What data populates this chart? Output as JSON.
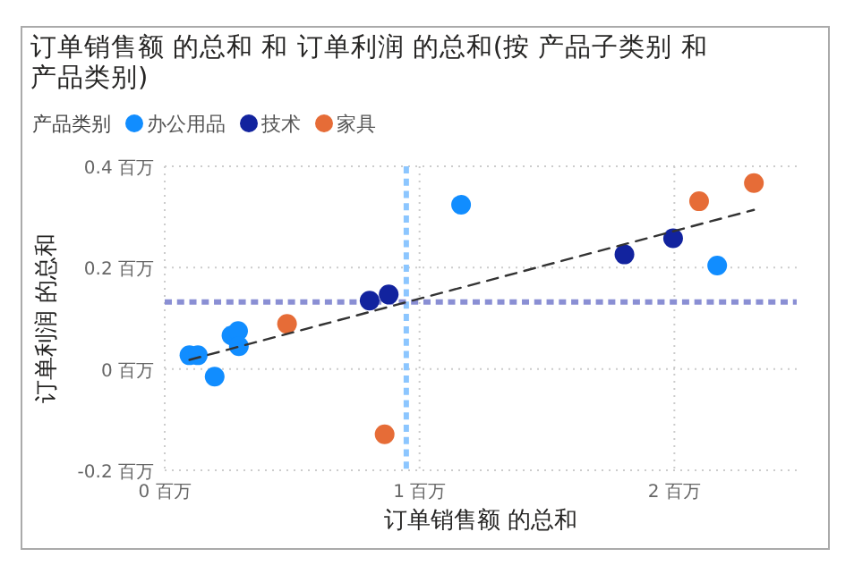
{
  "chart_data": {
    "type": "scatter",
    "title": "订单销售额 的总和 和 订单利润 的总和(按 产品子类别 和产品类别)",
    "xlabel": "订单销售额 的总和",
    "ylabel": "订单利润 的总和",
    "legend_title": "产品类别",
    "legend": "top left",
    "grid": true,
    "marker": "circle",
    "xlim": [
      0,
      2.48
    ],
    "xticks": [
      {
        "value": 0,
        "label": "0 百万"
      },
      {
        "value": 1,
        "label": "1 百万"
      },
      {
        "value": 2,
        "label": "2 百万"
      }
    ],
    "ylim": [
      -0.2,
      0.4
    ],
    "yticks": [
      {
        "value": -0.2,
        "label": "-0.2 百万"
      },
      {
        "value": 0,
        "label": "0 百万"
      },
      {
        "value": 0.2,
        "label": "0.2 百万"
      },
      {
        "value": 0.4,
        "label": "0.4 百万"
      }
    ],
    "series": [
      {
        "name": "办公用品",
        "color": "#118dff",
        "x": [
          0.097,
          0.13,
          0.196,
          0.262,
          0.288,
          0.291,
          1.163,
          2.168
        ],
        "values": [
          0.027,
          0.027,
          -0.015,
          0.066,
          0.075,
          0.045,
          0.324,
          0.204
        ]
      },
      {
        "name": "技术",
        "color": "#12239e",
        "x": [
          0.804,
          0.879,
          1.804,
          1.995
        ],
        "values": [
          0.135,
          0.147,
          0.226,
          0.258
        ]
      },
      {
        "name": "家具",
        "color": "#e66c37",
        "x": [
          0.48,
          0.863,
          2.097,
          2.312
        ],
        "values": [
          0.089,
          -0.129,
          0.331,
          0.367
        ]
      },
      {
        "type": "line",
        "color": "#333333",
        "line_style": "dashed",
        "marker": "none",
        "x": [
          0.097,
          2.312
        ],
        "values": [
          0.018,
          0.314
        ]
      }
    ],
    "ref_lines": [
      {
        "axis": "x",
        "value": 0.948,
        "color": "#8cc6ff",
        "line_style": "dashed"
      },
      {
        "axis": "y",
        "value": 0.132,
        "color": "#8a8fd4",
        "line_style": "dashed"
      }
    ]
  }
}
